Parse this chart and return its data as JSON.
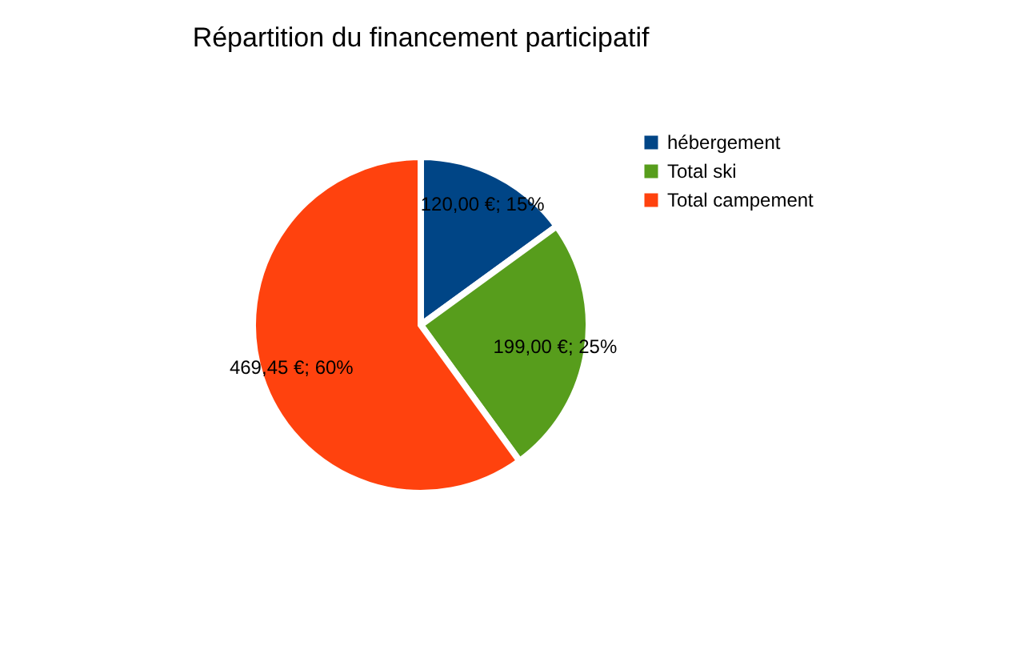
{
  "chart_data": {
    "type": "pie",
    "title": "Répartition du financement participatif",
    "categories": [
      "hébergement",
      "Total ski",
      "Total campement"
    ],
    "values": [
      15,
      25,
      60
    ],
    "colors": [
      "#004586",
      "#579d1c",
      "#ff420e"
    ],
    "value_labels": [
      "120,00 €; 15%",
      "199,00 €; 25%",
      "469,45 €; 60%"
    ],
    "legend": "right"
  }
}
